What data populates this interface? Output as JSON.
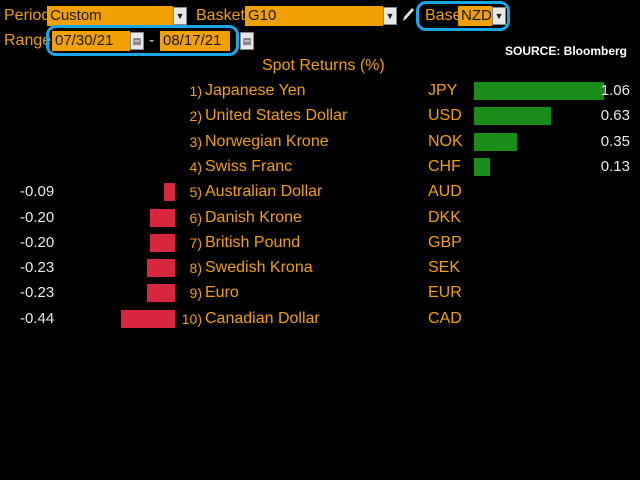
{
  "header": {
    "period_label": "Period",
    "period_value": "Custom",
    "basket_label": "Basket",
    "basket_value": "G10",
    "base_label": "Base",
    "base_value": "NZD",
    "range_label": "Range",
    "range_start": "07/30/21",
    "range_separator": "-",
    "range_end": "08/17/21",
    "source": "SOURCE: Bloomberg"
  },
  "colors": {
    "positive": "#1a8c1a",
    "negative": "#d7263d",
    "accent": "#f0a000",
    "highlight": "#1aa6e8"
  },
  "chart_data": {
    "type": "bar",
    "title": "Spot Returns (%)",
    "rows": [
      {
        "rank": "1)",
        "name": "Japanese Yen",
        "code": "JPY",
        "value": 1.06,
        "label": "1.06"
      },
      {
        "rank": "2)",
        "name": "United States Dollar",
        "code": "USD",
        "value": 0.63,
        "label": "0.63"
      },
      {
        "rank": "3)",
        "name": "Norwegian Krone",
        "code": "NOK",
        "value": 0.35,
        "label": "0.35"
      },
      {
        "rank": "4)",
        "name": "Swiss Franc",
        "code": "CHF",
        "value": 0.13,
        "label": "0.13"
      },
      {
        "rank": "5)",
        "name": "Australian Dollar",
        "code": "AUD",
        "value": -0.09,
        "label": "-0.09"
      },
      {
        "rank": "6)",
        "name": "Danish Krone",
        "code": "DKK",
        "value": -0.2,
        "label": "-0.20"
      },
      {
        "rank": "7)",
        "name": "British Pound",
        "code": "GBP",
        "value": -0.2,
        "label": "-0.20"
      },
      {
        "rank": "8)",
        "name": "Swedish Krona",
        "code": "SEK",
        "value": -0.23,
        "label": "-0.23"
      },
      {
        "rank": "9)",
        "name": "Euro",
        "code": "EUR",
        "value": -0.23,
        "label": "-0.23"
      },
      {
        "rank": "10)",
        "name": "Canadian Dollar",
        "code": "CAD",
        "value": -0.44,
        "label": "-0.44"
      }
    ]
  }
}
